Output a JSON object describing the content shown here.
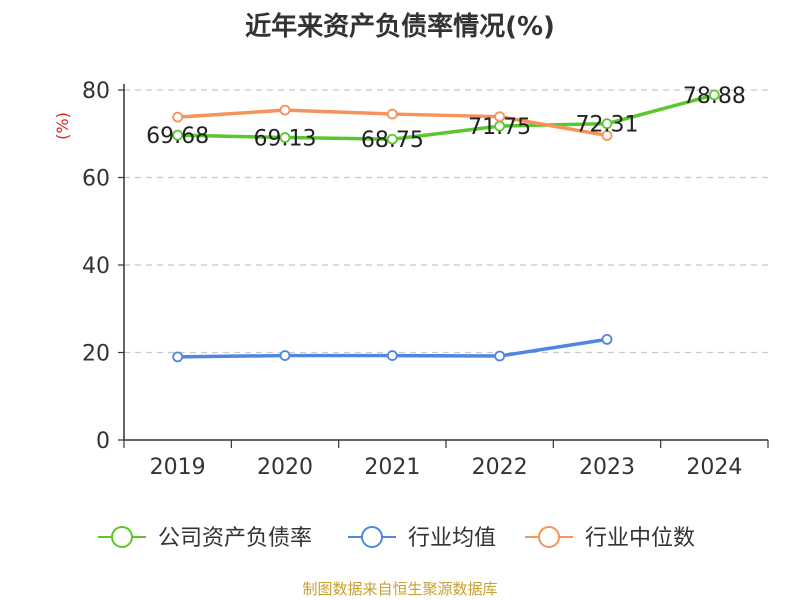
{
  "title": "近年来资产负债率情况(%)",
  "source": "制图数据来自恒生聚源数据库",
  "chart_data": {
    "type": "line",
    "title": "近年来资产负债率情况(%)",
    "ylabel": "(%)",
    "ylim": [
      0,
      80
    ],
    "yticks": [
      "0",
      "20",
      "40",
      "60",
      "80"
    ],
    "categories": [
      "2019",
      "2020",
      "2021",
      "2022",
      "2023",
      "2024"
    ],
    "grid": true,
    "legend_position": "bottom",
    "series": [
      {
        "name": "公司资产负债率",
        "color": "#5ac82d",
        "values": [
          69.68,
          69.13,
          68.75,
          71.75,
          72.31,
          78.88
        ],
        "labels": [
          "69.68",
          "69.13",
          "68.75",
          "71.75",
          "72.31",
          "78.88"
        ]
      },
      {
        "name": "行业均值",
        "color": "#4f86e0",
        "values": [
          19.0,
          19.3,
          19.3,
          19.2,
          23.0,
          null
        ]
      },
      {
        "name": "行业中位数",
        "color": "#f5935a",
        "values": [
          73.8,
          75.4,
          74.5,
          73.9,
          69.6,
          null
        ]
      }
    ]
  }
}
